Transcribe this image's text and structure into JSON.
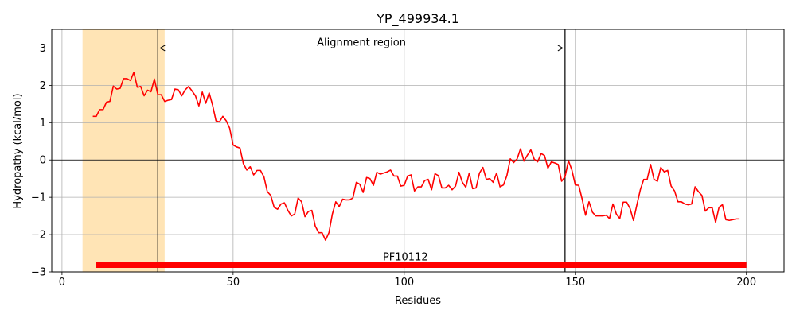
{
  "chart_data": {
    "type": "line",
    "title": "YP_499934.1",
    "xlabel": "Residues",
    "ylabel": "Hydropathy (kcal/mol)",
    "xlim": [
      -3,
      211
    ],
    "ylim": [
      -3,
      3.5
    ],
    "xticks": [
      0,
      50,
      100,
      150,
      200
    ],
    "yticks": [
      -3,
      -2,
      -1,
      0,
      1,
      2,
      3
    ],
    "grid": true,
    "series": [
      {
        "color": "#ff0000",
        "x": [
          9,
          10,
          11,
          12,
          13,
          14,
          15,
          16,
          17,
          18,
          19,
          20,
          21,
          22,
          23,
          24,
          25,
          26,
          27,
          28,
          29,
          30,
          31,
          32,
          33,
          34,
          35,
          36,
          37,
          38,
          39,
          40,
          41,
          42,
          43,
          44,
          45,
          46,
          47,
          48,
          49,
          50,
          51,
          52,
          53,
          54,
          55,
          56,
          57,
          58,
          59,
          60,
          61,
          62,
          63,
          64,
          65,
          66,
          67,
          68,
          69,
          70,
          71,
          72,
          73,
          74,
          75,
          76,
          77,
          78,
          79,
          80,
          81,
          82,
          83,
          84,
          85,
          86,
          87,
          88,
          89,
          90,
          91,
          92,
          93,
          94,
          95,
          96,
          97,
          98,
          99,
          100,
          101,
          102,
          103,
          104,
          105,
          106,
          107,
          108,
          109,
          110,
          111,
          112,
          113,
          114,
          115,
          116,
          117,
          118,
          119,
          120,
          121,
          122,
          123,
          124,
          125,
          126,
          127,
          128,
          129,
          130,
          131,
          132,
          133,
          134,
          135,
          136,
          137,
          138,
          139,
          140,
          141,
          142,
          143,
          144,
          145,
          146,
          147,
          148,
          149,
          150,
          151,
          152,
          153,
          154,
          155,
          156,
          157,
          158,
          159,
          160,
          161,
          162,
          163,
          164,
          165,
          166,
          167,
          168,
          169,
          170,
          171,
          172,
          173,
          174,
          175,
          176,
          177,
          178,
          179,
          180,
          181,
          182,
          183,
          184,
          185,
          186,
          187,
          188,
          189,
          190,
          191,
          192,
          193,
          194,
          195,
          196,
          197,
          198
        ],
        "y": [
          1.17,
          1.17,
          1.35,
          1.35,
          1.55,
          1.57,
          1.98,
          1.9,
          1.92,
          2.18,
          2.18,
          2.13,
          2.35,
          1.95,
          1.97,
          1.72,
          1.87,
          1.83,
          2.17,
          1.75,
          1.75,
          1.57,
          1.6,
          1.62,
          1.9,
          1.88,
          1.72,
          1.88,
          1.97,
          1.85,
          1.72,
          1.45,
          1.82,
          1.52,
          1.8,
          1.47,
          1.05,
          1.02,
          1.17,
          1.05,
          0.85,
          0.4,
          0.35,
          0.32,
          -0.1,
          -0.27,
          -0.18,
          -0.4,
          -0.28,
          -0.28,
          -0.45,
          -0.85,
          -0.95,
          -1.27,
          -1.32,
          -1.18,
          -1.15,
          -1.35,
          -1.5,
          -1.45,
          -1.02,
          -1.12,
          -1.52,
          -1.38,
          -1.35,
          -1.77,
          -1.95,
          -1.95,
          -2.15,
          -1.95,
          -1.45,
          -1.12,
          -1.25,
          -1.05,
          -1.07,
          -1.07,
          -1.02,
          -0.6,
          -0.65,
          -0.87,
          -0.47,
          -0.5,
          -0.68,
          -0.33,
          -0.38,
          -0.35,
          -0.32,
          -0.27,
          -0.43,
          -0.43,
          -0.7,
          -0.68,
          -0.43,
          -0.4,
          -0.83,
          -0.72,
          -0.72,
          -0.55,
          -0.52,
          -0.8,
          -0.37,
          -0.42,
          -0.75,
          -0.75,
          -0.68,
          -0.8,
          -0.7,
          -0.33,
          -0.6,
          -0.73,
          -0.35,
          -0.77,
          -0.75,
          -0.35,
          -0.2,
          -0.52,
          -0.5,
          -0.6,
          -0.35,
          -0.72,
          -0.67,
          -0.42,
          0.03,
          -0.07,
          0.03,
          0.3,
          -0.03,
          0.13,
          0.27,
          0.02,
          -0.05,
          0.17,
          0.12,
          -0.22,
          -0.05,
          -0.08,
          -0.12,
          -0.57,
          -0.45,
          -0.02,
          -0.27,
          -0.67,
          -0.68,
          -1.05,
          -1.48,
          -1.12,
          -1.4,
          -1.5,
          -1.5,
          -1.5,
          -1.48,
          -1.57,
          -1.18,
          -1.45,
          -1.57,
          -1.13,
          -1.13,
          -1.3,
          -1.62,
          -1.2,
          -0.8,
          -0.52,
          -0.52,
          -0.12,
          -0.52,
          -0.57,
          -0.2,
          -0.32,
          -0.28,
          -0.7,
          -0.83,
          -1.12,
          -1.12,
          -1.18,
          -1.2,
          -1.18,
          -0.72,
          -0.85,
          -0.95,
          -1.37,
          -1.28,
          -1.28,
          -1.67,
          -1.27,
          -1.2,
          -1.6,
          -1.62,
          -1.6,
          -1.58,
          -1.58
        ]
      }
    ],
    "shaded_region": {
      "x": [
        6,
        30
      ],
      "color": "#ffe4b5"
    },
    "vlines": [
      28,
      147
    ],
    "hline": 0,
    "annotations": [
      {
        "text": "Alignment region",
        "x_from": 28,
        "x_to": 147,
        "y": 3
      }
    ],
    "domain_bar": {
      "label": "PF10112",
      "x": [
        10,
        200
      ],
      "y": -2.82,
      "color": "#ff0000"
    }
  }
}
